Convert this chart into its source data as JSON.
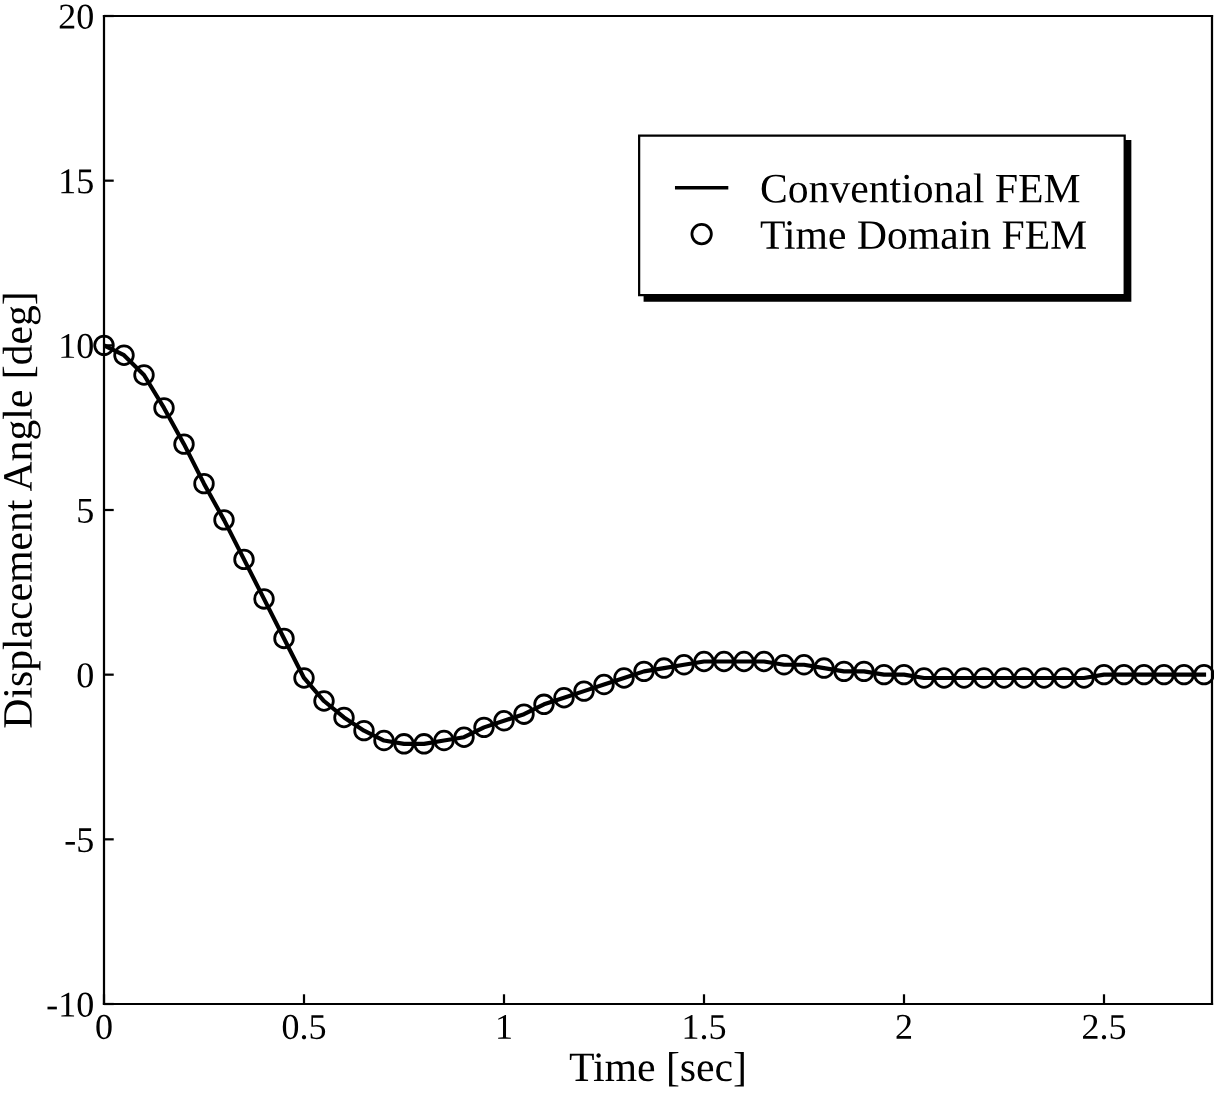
{
  "chart_data": {
    "type": "line",
    "xlabel": "Time [sec]",
    "ylabel": "Displacement Angle [deg]",
    "xlim": [
      0,
      2.77
    ],
    "ylim": [
      -10,
      20
    ],
    "xticks": [
      0,
      0.5,
      1,
      1.5,
      2,
      2.5
    ],
    "yticks": [
      -10,
      -5,
      0,
      5,
      10,
      15,
      20
    ],
    "x": [
      0,
      0.05,
      0.1,
      0.15,
      0.2,
      0.25,
      0.3,
      0.35,
      0.4,
      0.45,
      0.5,
      0.55,
      0.6,
      0.65,
      0.7,
      0.75,
      0.8,
      0.85,
      0.9,
      0.95,
      1.0,
      1.05,
      1.1,
      1.15,
      1.2,
      1.25,
      1.3,
      1.35,
      1.4,
      1.45,
      1.5,
      1.55,
      1.6,
      1.65,
      1.7,
      1.75,
      1.8,
      1.85,
      1.9,
      1.95,
      2.0,
      2.05,
      2.1,
      2.15,
      2.2,
      2.25,
      2.3,
      2.35,
      2.4,
      2.45,
      2.5,
      2.55,
      2.6,
      2.65,
      2.7,
      2.75
    ],
    "series": [
      {
        "name": "Conventional FEM",
        "color": "#000000",
        "marker": "none",
        "line_style": "solid",
        "values": [
          10.0,
          9.7,
          9.1,
          8.1,
          7.0,
          5.8,
          4.7,
          3.5,
          2.3,
          1.1,
          -0.1,
          -0.8,
          -1.3,
          -1.7,
          -2.0,
          -2.1,
          -2.1,
          -2.0,
          -1.9,
          -1.6,
          -1.4,
          -1.2,
          -0.9,
          -0.7,
          -0.5,
          -0.3,
          -0.1,
          0.1,
          0.2,
          0.3,
          0.4,
          0.4,
          0.4,
          0.4,
          0.3,
          0.3,
          0.2,
          0.1,
          0.1,
          0.0,
          0.0,
          -0.1,
          -0.1,
          -0.1,
          -0.1,
          -0.1,
          -0.1,
          -0.1,
          -0.1,
          -0.1,
          0.0,
          0.0,
          0.0,
          0.0,
          0.0,
          0.0
        ]
      },
      {
        "name": "Time Domain FEM",
        "color": "#000000",
        "type": "scatter",
        "marker": "circle",
        "values": [
          10.0,
          9.7,
          9.1,
          8.1,
          7.0,
          5.8,
          4.7,
          3.5,
          2.3,
          1.1,
          -0.1,
          -0.8,
          -1.3,
          -1.7,
          -2.0,
          -2.1,
          -2.1,
          -2.0,
          -1.9,
          -1.6,
          -1.4,
          -1.2,
          -0.9,
          -0.7,
          -0.5,
          -0.3,
          -0.1,
          0.1,
          0.2,
          0.3,
          0.4,
          0.4,
          0.4,
          0.4,
          0.3,
          0.3,
          0.2,
          0.1,
          0.1,
          0.0,
          0.0,
          -0.1,
          -0.1,
          -0.1,
          -0.1,
          -0.1,
          -0.1,
          -0.1,
          -0.1,
          -0.1,
          0.0,
          0.0,
          0.0,
          0.0,
          0.0,
          0.0
        ]
      }
    ],
    "grid": false,
    "legend": "top right"
  }
}
